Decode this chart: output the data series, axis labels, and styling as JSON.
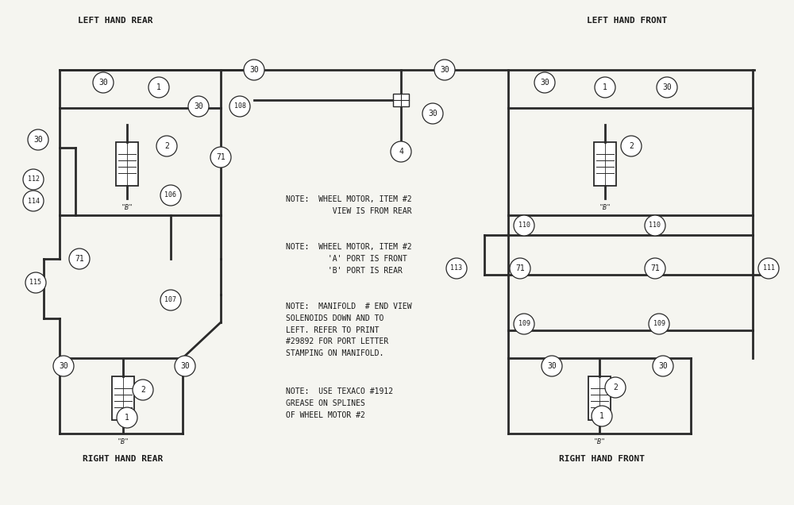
{
  "bg_color": "#f5f5f0",
  "line_color": "#2a2a2a",
  "text_color": "#1a1a1a",
  "lhr_title": "LEFT HAND REAR",
  "rhr_title": "RIGHT HAND REAR",
  "lhf_title": "LEFT HAND FRONT",
  "rhf_title": "RIGHT HAND FRONT",
  "note1": "NOTE:  WHEEL MOTOR, ITEM #2\n          VIEW IS FROM REAR",
  "note2": "NOTE:  WHEEL MOTOR, ITEM #2\n         'A' PORT IS FRONT\n         'B' PORT IS REAR",
  "note3": "NOTE:  MANIFOLD  # END VIEW\nSOLENOIDS DOWN AND TO\nLEFT. REFER TO PRINT\n#29892 FOR PORT LETTER\nSTAMPING ON MANIFOLD.",
  "note4": "NOTE:  USE TEXACO #1912\nGREASE ON SPLINES\nOF WHEEL MOTOR #2"
}
